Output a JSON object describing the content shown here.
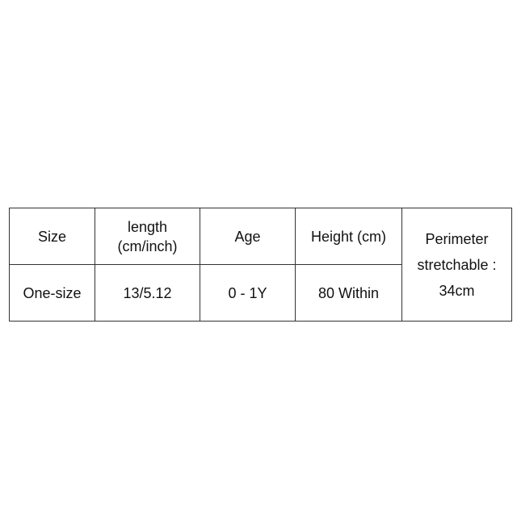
{
  "table": {
    "header": [
      "Size",
      "length (cm/inch)",
      "Age",
      "Height (cm)",
      "Perimeter stretchable : 34cm"
    ],
    "rows": [
      [
        "One-size",
        "13/5.12",
        "0 - 1Y",
        "80 Within"
      ]
    ]
  }
}
